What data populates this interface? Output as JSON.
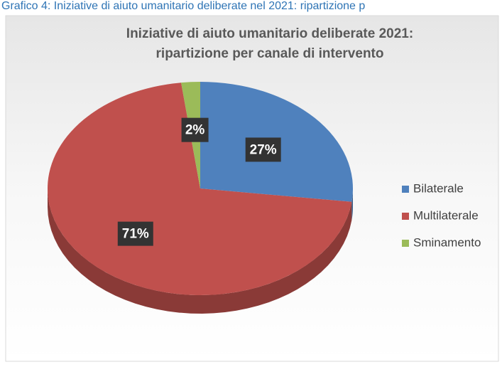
{
  "caption": "Grafico 4: Iniziative di aiuto umanitario deliberate nel 2021: ripartizione p",
  "chart_data": {
    "type": "pie",
    "title": [
      "Iniziative di aiuto umanitario deliberate 2021:",
      "ripartizione per canale di intervento"
    ],
    "categories": [
      "Bilaterale",
      "Multilaterale",
      "Sminamento"
    ],
    "values": [
      27,
      71,
      2
    ],
    "value_labels": [
      "27%",
      "71%",
      "2%"
    ],
    "colors": [
      "#4f81bd",
      "#c0504d",
      "#9bbb59"
    ],
    "legend": "right"
  }
}
